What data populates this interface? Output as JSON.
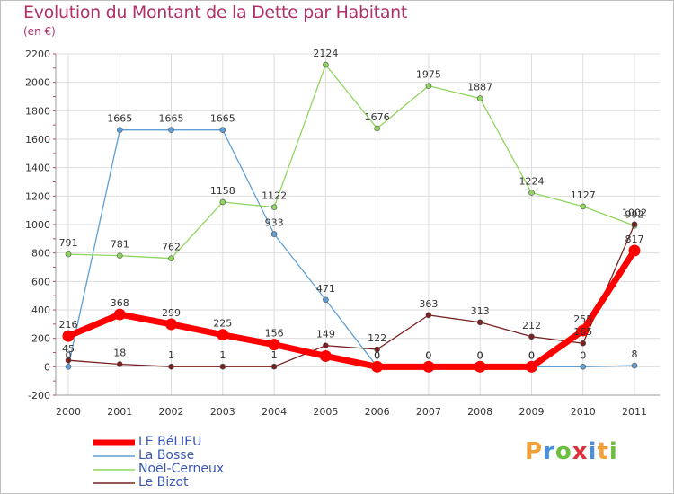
{
  "title": "Evolution du Montant de la Dette par Habitant",
  "unit": "(en €)",
  "logo": {
    "letters": [
      "P",
      "r",
      "o",
      "x",
      "i",
      "t",
      "i"
    ],
    "colors": [
      "#f2a13a",
      "#4a90d9",
      "#6cbf3f",
      "#d9343a",
      "#4a90d9",
      "#f2a13a",
      "#6cbf3f"
    ]
  },
  "chart_data": {
    "type": "line",
    "x": [
      "2000",
      "2001",
      "2002",
      "2003",
      "2004",
      "2005",
      "2006",
      "2007",
      "2008",
      "2009",
      "2010",
      "2011"
    ],
    "ylim": [
      -200,
      2200
    ],
    "yticks": [
      "-200",
      "0",
      "200",
      "400",
      "600",
      "800",
      "1000",
      "1200",
      "1400",
      "1600",
      "1800",
      "2000",
      "2200"
    ],
    "series": [
      {
        "name": "LE BéLIEU",
        "color": "#ff0000",
        "values": [
          216,
          368,
          299,
          225,
          156,
          75,
          0,
          0,
          0,
          0,
          255,
          817
        ],
        "labels": [
          "216",
          "368",
          "299",
          "225",
          "156",
          "",
          "0",
          "0",
          "0",
          "0",
          "255",
          "817"
        ]
      },
      {
        "name": "La Bosse",
        "color": "#5f9fd6",
        "values": [
          0,
          1665,
          1665,
          1665,
          933,
          471,
          0,
          0,
          0,
          0,
          0,
          8
        ],
        "labels": [
          "0",
          "1665",
          "1665",
          "1665",
          "933",
          "471",
          "0",
          "0",
          "0",
          "0",
          "0",
          "8"
        ]
      },
      {
        "name": "Noël-Cerneux",
        "color": "#8fd65f",
        "values": [
          791,
          781,
          762,
          1158,
          1122,
          2124,
          1676,
          1975,
          1887,
          1224,
          1127,
          992
        ],
        "labels": [
          "791",
          "781",
          "762",
          "1158",
          "1122",
          "2124",
          "1676",
          "1975",
          "1887",
          "1224",
          "1127",
          "992"
        ]
      },
      {
        "name": "Le Bizot",
        "color": "#7a2020",
        "values": [
          45,
          18,
          1,
          1,
          1,
          149,
          122,
          363,
          313,
          212,
          165,
          1002
        ],
        "labels": [
          "45",
          "18",
          "1",
          "1",
          "1",
          "149",
          "122",
          "363",
          "313",
          "212",
          "165",
          "1002"
        ]
      }
    ]
  }
}
